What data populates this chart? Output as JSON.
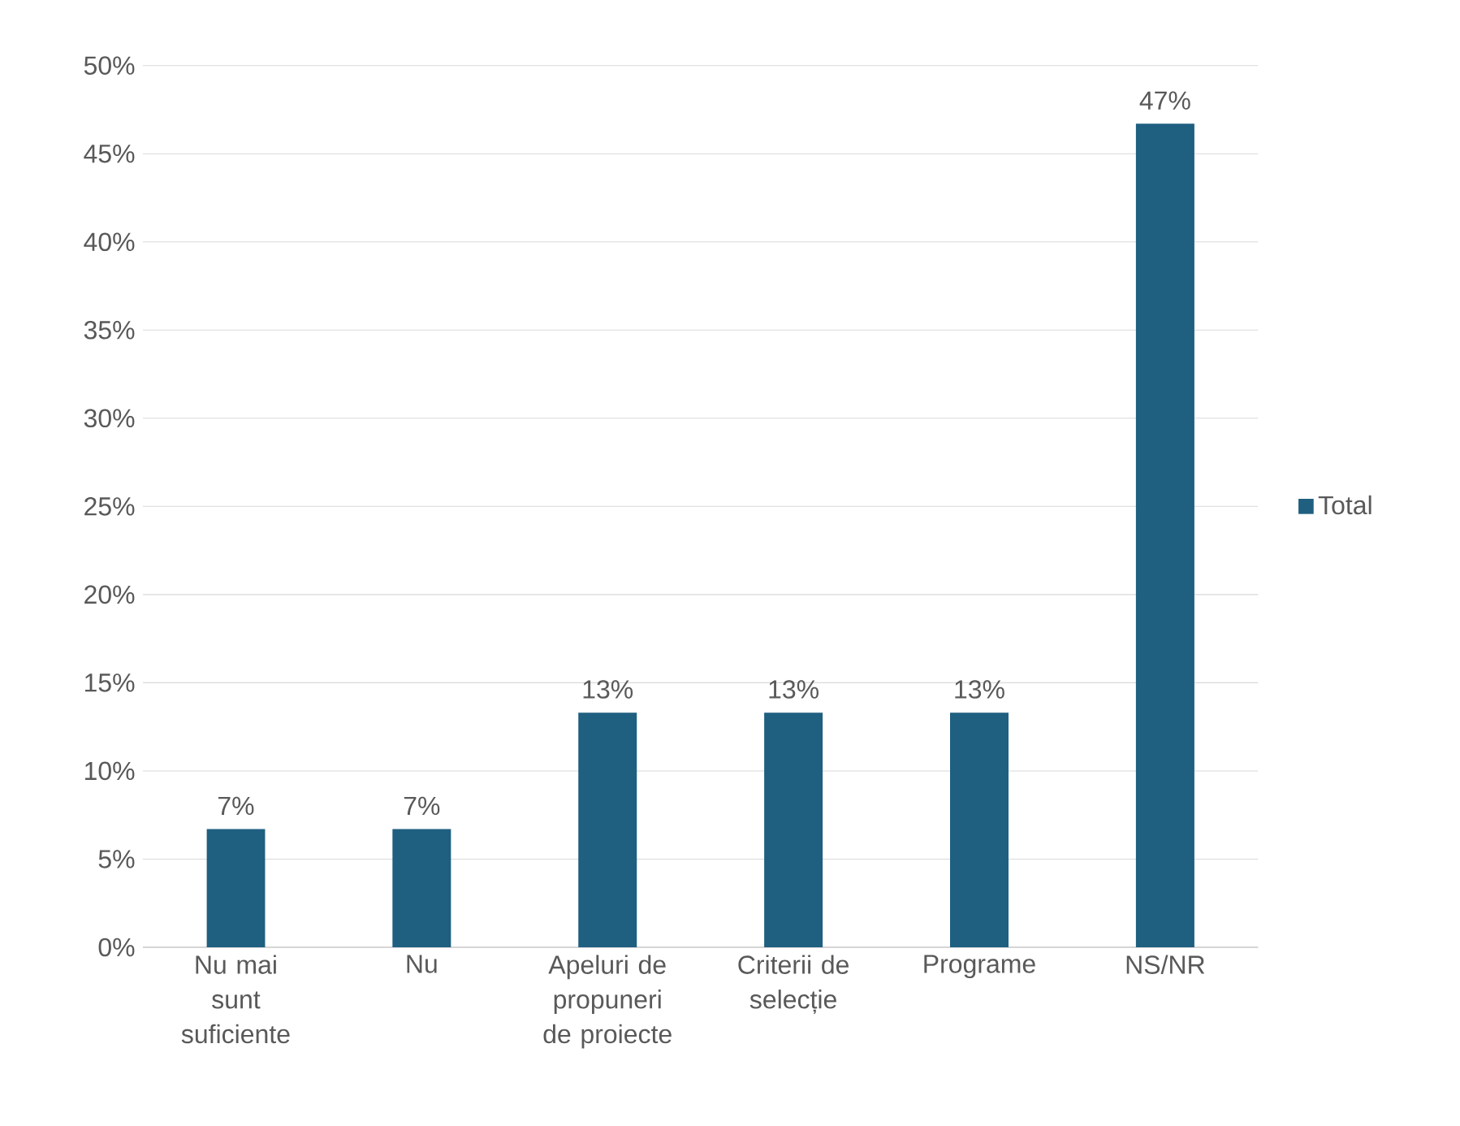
{
  "chart_data": {
    "type": "bar",
    "categories": [
      "Nu mai sunt suficiente",
      "Nu",
      "Apeluri de propuneri de proiecte",
      "Criterii de selecție",
      "Programe",
      "NS/NR"
    ],
    "series": [
      {
        "name": "Total",
        "color": "#1f5f80",
        "values": [
          6.7,
          6.7,
          13.3,
          13.3,
          13.3,
          46.7
        ],
        "value_labels": [
          "7%",
          "7%",
          "13%",
          "13%",
          "13%",
          "47%"
        ]
      }
    ],
    "ylim": [
      0,
      50
    ],
    "yticks": [
      {
        "value": 0,
        "label": "0%"
      },
      {
        "value": 5,
        "label": "5%"
      },
      {
        "value": 10,
        "label": "10%"
      },
      {
        "value": 15,
        "label": "15%"
      },
      {
        "value": 20,
        "label": "20%"
      },
      {
        "value": 25,
        "label": "25%"
      },
      {
        "value": 30,
        "label": "30%"
      },
      {
        "value": 35,
        "label": "35%"
      },
      {
        "value": 40,
        "label": "40%"
      },
      {
        "value": 45,
        "label": "45%"
      },
      {
        "value": 50,
        "label": "50%"
      }
    ],
    "grid": "y",
    "legend": "right"
  }
}
